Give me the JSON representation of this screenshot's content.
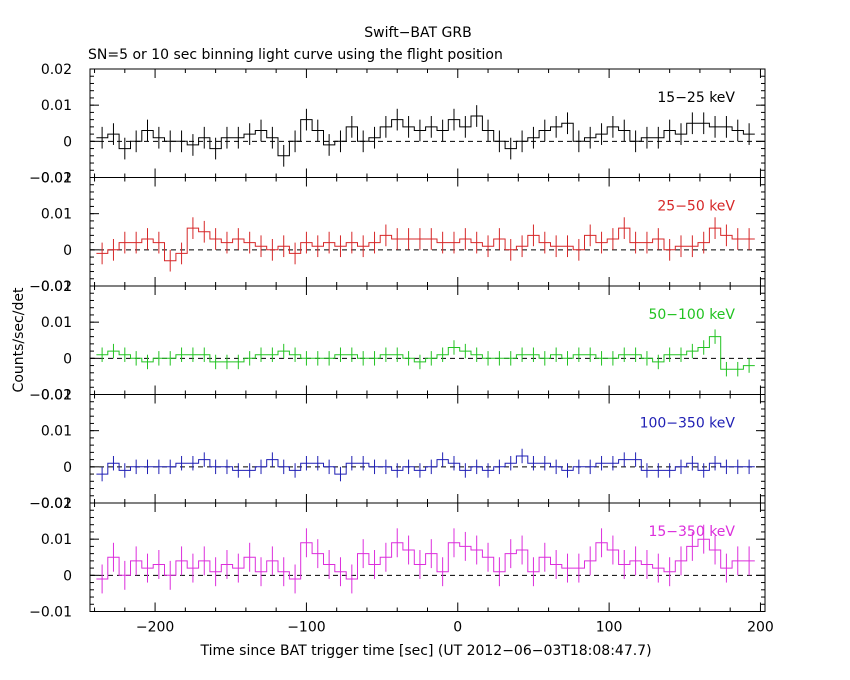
{
  "title": "Swift−BAT GRB",
  "subtitle": "SN=5 or 10 sec binning light curve using the flight position",
  "xlabel": "Time since BAT trigger time [sec] (UT 2012−06−03T18:08:47.7)",
  "ylabel": "Counts/sec/det",
  "chart_data": {
    "type": "line",
    "style": "step with error bars",
    "xlim": [
      -243,
      203
    ],
    "x_ticks": [
      -200,
      -100,
      0,
      100,
      200
    ],
    "x_tick_labels": [
      "−200",
      "−100",
      "0",
      "100",
      "200"
    ],
    "bin_width": 7.5,
    "panels": [
      {
        "name": "15−25 keV",
        "color": "#000000",
        "ylim": [
          -0.01,
          0.02
        ],
        "yticks": [
          -0.01,
          0,
          0.01,
          0.02
        ],
        "ytick_labels": [
          "−0.01",
          "0",
          "0.01",
          "0.02"
        ],
        "x": [
          -235,
          -227.5,
          -220,
          -212.5,
          -205,
          -197.5,
          -190,
          -182.5,
          -175,
          -167.5,
          -160,
          -152.5,
          -145,
          -137.5,
          -130,
          -122.5,
          -115,
          -107.5,
          -100,
          -92.5,
          -85,
          -77.5,
          -70,
          -62.5,
          -55,
          -47.5,
          -40,
          -32.5,
          -25,
          -17.5,
          -10,
          -2.5,
          5,
          12.5,
          20,
          27.5,
          35,
          42.5,
          50,
          57.5,
          65,
          72.5,
          80,
          87.5,
          95,
          102.5,
          110,
          117.5,
          125,
          132.5,
          140,
          147.5,
          155,
          162.5,
          170,
          177.5,
          185,
          192.5
        ],
        "y": [
          0.001,
          0.002,
          -0.002,
          0,
          0.003,
          0.001,
          0,
          0,
          -0.001,
          0.001,
          -0.002,
          0.001,
          0.001,
          0.002,
          0.003,
          0.001,
          -0.004,
          0,
          0.006,
          0.003,
          -0.001,
          0,
          0.004,
          0,
          0.001,
          0.004,
          0.006,
          0.004,
          0.003,
          0.004,
          0.003,
          0.006,
          0.004,
          0.007,
          0.003,
          0,
          -0.002,
          0,
          0.001,
          0.003,
          0.004,
          0.005,
          0,
          0.001,
          0.002,
          0.004,
          0.003,
          0,
          0.001,
          0.001,
          0.003,
          0.002,
          0.005,
          0.005,
          0.004,
          0.004,
          0.003,
          0.002
        ],
        "err": 0.003
      },
      {
        "name": "25−50 keV",
        "color": "#d62728",
        "ylim": [
          -0.01,
          0.02
        ],
        "yticks": [
          -0.01,
          0,
          0.01,
          0.02
        ],
        "ytick_labels": [
          "−0.01",
          "0",
          "0.01",
          "0.02"
        ],
        "x": [
          -235,
          -227.5,
          -220,
          -212.5,
          -205,
          -197.5,
          -190,
          -182.5,
          -175,
          -167.5,
          -160,
          -152.5,
          -145,
          -137.5,
          -130,
          -122.5,
          -115,
          -107.5,
          -100,
          -92.5,
          -85,
          -77.5,
          -70,
          -62.5,
          -55,
          -47.5,
          -40,
          -32.5,
          -25,
          -17.5,
          -10,
          -2.5,
          5,
          12.5,
          20,
          27.5,
          35,
          42.5,
          50,
          57.5,
          65,
          72.5,
          80,
          87.5,
          95,
          102.5,
          110,
          117.5,
          125,
          132.5,
          140,
          147.5,
          155,
          162.5,
          170,
          177.5,
          185,
          192.5
        ],
        "y": [
          -0.001,
          0,
          0.002,
          0.002,
          0.003,
          0.002,
          -0.003,
          -0.001,
          0.006,
          0.005,
          0.003,
          0.002,
          0.003,
          0.002,
          0.001,
          0,
          0.001,
          -0.001,
          0.002,
          0.001,
          0.002,
          0.001,
          0.002,
          0.001,
          0.002,
          0.004,
          0.003,
          0.003,
          0.003,
          0.003,
          0.002,
          0.002,
          0.003,
          0.002,
          0.001,
          0.003,
          0,
          0.001,
          0.004,
          0.002,
          0.001,
          0.001,
          0,
          0.004,
          0.002,
          0.003,
          0.006,
          0.002,
          0.002,
          0.003,
          0,
          0.001,
          0.001,
          0.002,
          0.006,
          0.004,
          0.003,
          0.003
        ],
        "err": 0.003
      },
      {
        "name": "50−100 keV",
        "color": "#22c322",
        "ylim": [
          -0.01,
          0.02
        ],
        "yticks": [
          -0.01,
          0,
          0.01,
          0.02
        ],
        "ytick_labels": [
          "−0.01",
          "0",
          "0.01",
          "0.02"
        ],
        "x": [
          -235,
          -227.5,
          -220,
          -212.5,
          -205,
          -197.5,
          -190,
          -182.5,
          -175,
          -167.5,
          -160,
          -152.5,
          -145,
          -137.5,
          -130,
          -122.5,
          -115,
          -107.5,
          -100,
          -92.5,
          -85,
          -77.5,
          -70,
          -62.5,
          -55,
          -47.5,
          -40,
          -32.5,
          -25,
          -17.5,
          -10,
          -2.5,
          5,
          12.5,
          20,
          27.5,
          35,
          42.5,
          50,
          57.5,
          65,
          72.5,
          80,
          87.5,
          95,
          102.5,
          110,
          117.5,
          125,
          132.5,
          140,
          147.5,
          155,
          162.5,
          170,
          177.5,
          185,
          192.5
        ],
        "y": [
          0.001,
          0.002,
          0.001,
          0,
          -0.001,
          0,
          0,
          0.001,
          0.001,
          0.001,
          -0.001,
          -0.001,
          -0.001,
          0,
          0.001,
          0.001,
          0.002,
          0.001,
          0,
          0,
          0,
          0.001,
          0.001,
          0,
          0,
          0.001,
          0.001,
          0,
          -0.001,
          0,
          0.001,
          0.003,
          0.002,
          0.001,
          0,
          0,
          0,
          0.001,
          0.001,
          0,
          0.001,
          0,
          0.001,
          0.001,
          0,
          0,
          0.001,
          0.001,
          0,
          -0.001,
          0.001,
          0.001,
          0.002,
          0.003,
          0.006,
          -0.003,
          -0.003,
          -0.002
        ],
        "err": 0.002
      },
      {
        "name": "100−350 keV",
        "color": "#1f1fb4",
        "ylim": [
          -0.01,
          0.02
        ],
        "yticks": [
          -0.01,
          0,
          0.01,
          0.02
        ],
        "ytick_labels": [
          "−0.01",
          "0",
          "0.01",
          "0.02"
        ],
        "x": [
          -235,
          -227.5,
          -220,
          -212.5,
          -205,
          -197.5,
          -190,
          -182.5,
          -175,
          -167.5,
          -160,
          -152.5,
          -145,
          -137.5,
          -130,
          -122.5,
          -115,
          -107.5,
          -100,
          -92.5,
          -85,
          -77.5,
          -70,
          -62.5,
          -55,
          -47.5,
          -40,
          -32.5,
          -25,
          -17.5,
          -10,
          -2.5,
          5,
          12.5,
          20,
          27.5,
          35,
          42.5,
          50,
          57.5,
          65,
          72.5,
          80,
          87.5,
          95,
          102.5,
          110,
          117.5,
          125,
          132.5,
          140,
          147.5,
          155,
          162.5,
          170,
          177.5,
          185,
          192.5
        ],
        "y": [
          -0.002,
          0.001,
          -0.001,
          0,
          0,
          0,
          0,
          0.001,
          0.001,
          0.002,
          0,
          0,
          -0.001,
          -0.001,
          0,
          0.002,
          0,
          -0.001,
          0.001,
          0.001,
          0,
          -0.002,
          0.001,
          0.001,
          0,
          0,
          -0.001,
          0,
          -0.001,
          0,
          0.002,
          0.001,
          -0.001,
          0,
          -0.001,
          0,
          0.001,
          0.003,
          0.001,
          0.001,
          0,
          -0.001,
          0,
          0,
          0.001,
          0.001,
          0.002,
          0.002,
          -0.001,
          -0.001,
          -0.001,
          0,
          0.001,
          -0.001,
          0.001,
          0,
          0,
          0
        ],
        "err": 0.002
      },
      {
        "name": "15−350 keV",
        "color": "#dc2edc",
        "ylim": [
          -0.01,
          0.02
        ],
        "yticks": [
          -0.01,
          0,
          0.01,
          0.02
        ],
        "ytick_labels": [
          "−0.01",
          "0",
          "0.01",
          "0.02"
        ],
        "x": [
          -235,
          -227.5,
          -220,
          -212.5,
          -205,
          -197.5,
          -190,
          -182.5,
          -175,
          -167.5,
          -160,
          -152.5,
          -145,
          -137.5,
          -130,
          -122.5,
          -115,
          -107.5,
          -100,
          -92.5,
          -85,
          -77.5,
          -70,
          -62.5,
          -55,
          -47.5,
          -40,
          -32.5,
          -25,
          -17.5,
          -10,
          -2.5,
          5,
          12.5,
          20,
          27.5,
          35,
          42.5,
          50,
          57.5,
          65,
          72.5,
          80,
          87.5,
          95,
          102.5,
          110,
          117.5,
          125,
          132.5,
          140,
          147.5,
          155,
          162.5,
          170,
          177.5,
          185,
          192.5
        ],
        "y": [
          -0.001,
          0.005,
          0,
          0.004,
          0.002,
          0.003,
          0,
          0.004,
          0.002,
          0.004,
          0.001,
          0.003,
          0.002,
          0.005,
          0.001,
          0.004,
          0.001,
          -0.001,
          0.009,
          0.006,
          0.003,
          0.001,
          -0.001,
          0.006,
          0.003,
          0.005,
          0.009,
          0.007,
          0.003,
          0.006,
          0.001,
          0.009,
          0.008,
          0.007,
          0.005,
          0.001,
          0.006,
          0.007,
          0.001,
          0.005,
          0.003,
          0.002,
          0.002,
          0.004,
          0.009,
          0.007,
          0.003,
          0.004,
          0.003,
          0.002,
          0.001,
          0.004,
          0.008,
          0.01,
          0.007,
          0.002,
          0.004,
          0.004
        ],
        "err": 0.004
      }
    ]
  }
}
